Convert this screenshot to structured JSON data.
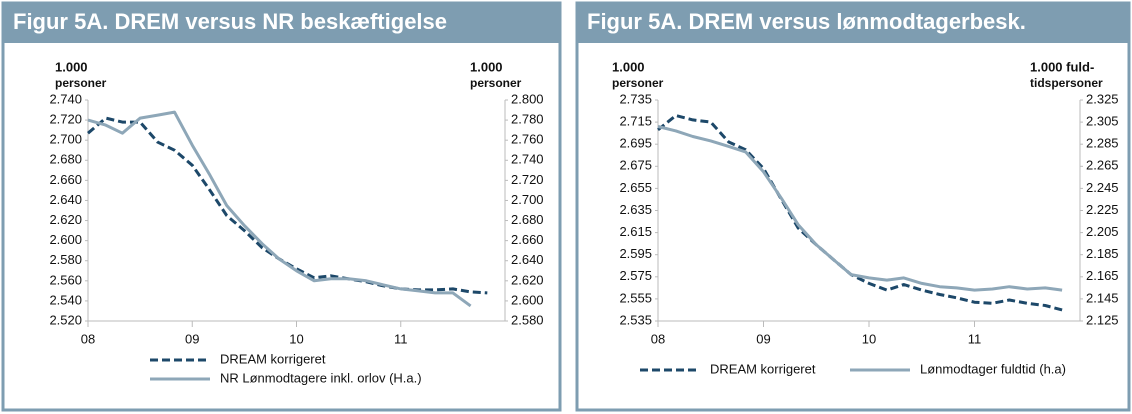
{
  "chart_data": [
    {
      "type": "line",
      "title": "Figur 5A. DREM versus NR beskæftigelse",
      "ylabel": [
        "1.000",
        "personer"
      ],
      "y2label": [
        "1.000",
        "personer"
      ],
      "legend": "bottom",
      "legend_columns": 1,
      "xlim": [
        8,
        12
      ],
      "xticks": [
        {
          "value": 8,
          "label": "08"
        },
        {
          "value": 9,
          "label": "09"
        },
        {
          "value": 10,
          "label": "10"
        },
        {
          "value": 11,
          "label": "11"
        }
      ],
      "ylim": [
        2520,
        2740
      ],
      "yticks": [
        {
          "value": 2520,
          "label": "2.520"
        },
        {
          "value": 2540,
          "label": "2.540"
        },
        {
          "value": 2560,
          "label": "2.560"
        },
        {
          "value": 2580,
          "label": "2.580"
        },
        {
          "value": 2600,
          "label": "2.600"
        },
        {
          "value": 2620,
          "label": "2.620"
        },
        {
          "value": 2640,
          "label": "2.640"
        },
        {
          "value": 2660,
          "label": "2.660"
        },
        {
          "value": 2680,
          "label": "2.680"
        },
        {
          "value": 2700,
          "label": "2.700"
        },
        {
          "value": 2720,
          "label": "2.720"
        },
        {
          "value": 2740,
          "label": "2.740"
        }
      ],
      "y2lim": [
        2580,
        2800
      ],
      "y2ticks": [
        {
          "value": 2580,
          "label": "2.580"
        },
        {
          "value": 2600,
          "label": "2.600"
        },
        {
          "value": 2620,
          "label": "2.620"
        },
        {
          "value": 2640,
          "label": "2.640"
        },
        {
          "value": 2660,
          "label": "2.660"
        },
        {
          "value": 2680,
          "label": "2.680"
        },
        {
          "value": 2700,
          "label": "2.700"
        },
        {
          "value": 2720,
          "label": "2.720"
        },
        {
          "value": 2740,
          "label": "2.740"
        },
        {
          "value": 2760,
          "label": "2.760"
        },
        {
          "value": 2780,
          "label": "2.780"
        },
        {
          "value": 2800,
          "label": "2.800"
        }
      ],
      "x": [
        8.0,
        8.17,
        8.33,
        8.5,
        8.67,
        8.83,
        9.0,
        9.17,
        9.33,
        9.5,
        9.67,
        9.83,
        10.0,
        10.17,
        10.33,
        10.5,
        10.67,
        10.83,
        11.0,
        11.17,
        11.33,
        11.5,
        11.67,
        11.83
      ],
      "series": [
        {
          "name": "DREAM korrigeret",
          "color": "#1d4869",
          "dashed": true,
          "values": [
            2707,
            2722,
            2718,
            2718,
            2698,
            2690,
            2675,
            2650,
            2625,
            2610,
            2593,
            2582,
            2572,
            2563,
            2565,
            2562,
            2559,
            2555,
            2552,
            2551,
            2551,
            2552,
            2549,
            2548
          ]
        },
        {
          "name": "NR Lønmodtagere inkl. orlov (H.a.)",
          "color": "#8ea7b8",
          "axis": "y2",
          "values": [
            2780,
            2775,
            2767,
            2782,
            2785,
            2788,
            2755,
            2725,
            2695,
            2675,
            2657,
            2642,
            2630,
            2620,
            2622,
            2622,
            2620,
            2616,
            2612,
            2610,
            2608,
            2608,
            2595,
            null
          ]
        }
      ]
    },
    {
      "type": "line",
      "title": "Figur 5A. DREM versus lønmodtagerbesk.",
      "ylabel": [
        "1.000",
        "personer"
      ],
      "y2label": [
        "1.000  fuld-",
        "tidspersoner"
      ],
      "legend": "bottom",
      "legend_columns": 2,
      "xlim": [
        8,
        12
      ],
      "xticks": [
        {
          "value": 8,
          "label": "08"
        },
        {
          "value": 9,
          "label": "09"
        },
        {
          "value": 10,
          "label": "10"
        },
        {
          "value": 11,
          "label": "11"
        }
      ],
      "ylim": [
        2535,
        2735
      ],
      "yticks": [
        {
          "value": 2535,
          "label": "2.535"
        },
        {
          "value": 2555,
          "label": "2.555"
        },
        {
          "value": 2575,
          "label": "2.575"
        },
        {
          "value": 2595,
          "label": "2.595"
        },
        {
          "value": 2615,
          "label": "2.615"
        },
        {
          "value": 2635,
          "label": "2.635"
        },
        {
          "value": 2655,
          "label": "2.655"
        },
        {
          "value": 2675,
          "label": "2.675"
        },
        {
          "value": 2695,
          "label": "2.695"
        },
        {
          "value": 2715,
          "label": "2.715"
        },
        {
          "value": 2735,
          "label": "2.735"
        }
      ],
      "y2lim": [
        2125,
        2325
      ],
      "y2ticks": [
        {
          "value": 2125,
          "label": "2.125"
        },
        {
          "value": 2145,
          "label": "2.145"
        },
        {
          "value": 2165,
          "label": "2.165"
        },
        {
          "value": 2185,
          "label": "2.185"
        },
        {
          "value": 2205,
          "label": "2.205"
        },
        {
          "value": 2225,
          "label": "2.225"
        },
        {
          "value": 2245,
          "label": "2.245"
        },
        {
          "value": 2265,
          "label": "2.265"
        },
        {
          "value": 2285,
          "label": "2.285"
        },
        {
          "value": 2305,
          "label": "2.305"
        },
        {
          "value": 2325,
          "label": "2.325"
        }
      ],
      "x": [
        8.0,
        8.17,
        8.33,
        8.5,
        8.67,
        8.83,
        9.0,
        9.17,
        9.33,
        9.5,
        9.67,
        9.83,
        10.0,
        10.17,
        10.33,
        10.5,
        10.67,
        10.83,
        11.0,
        11.17,
        11.33,
        11.5,
        11.67,
        11.83
      ],
      "series": [
        {
          "name": "DREAM korrigeret",
          "color": "#1d4869",
          "dashed": true,
          "values": [
            2708,
            2721,
            2717,
            2715,
            2697,
            2690,
            2673,
            2645,
            2619,
            2604,
            2590,
            2577,
            2569,
            2563,
            2568,
            2563,
            2559,
            2556,
            2552,
            2551,
            2554,
            2551,
            2549,
            2545
          ]
        },
        {
          "name": "Lønmodtager fuldtid (h.a)",
          "color": "#8ea7b8",
          "axis": "y2",
          "values": [
            2301,
            2297,
            2292,
            2288,
            2283,
            2278,
            2260,
            2236,
            2212,
            2194,
            2180,
            2167,
            2164,
            2162,
            2164,
            2159,
            2156,
            2155,
            2153,
            2154,
            2156,
            2154,
            2155,
            2153
          ]
        }
      ]
    }
  ]
}
